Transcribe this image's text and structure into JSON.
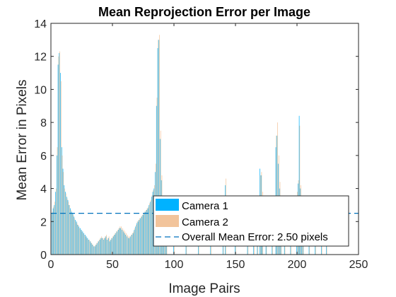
{
  "chart_data": {
    "type": "bar",
    "title": "Mean Reprojection Error per Image",
    "xlabel": "Image Pairs",
    "ylabel": "Mean Error in Pixels",
    "xlim": [
      0,
      250
    ],
    "ylim": [
      0,
      14
    ],
    "xticks": [
      0,
      50,
      100,
      150,
      200,
      250
    ],
    "yticks": [
      0,
      2,
      4,
      6,
      8,
      10,
      12,
      14
    ],
    "grid": false,
    "legend_position": "bottom-right",
    "colors": {
      "camera1": "#00b2ff",
      "camera2": "#f2c49b",
      "mean_line": "#0072bd"
    },
    "legend": {
      "entries": [
        "Camera 1",
        "Camera 2",
        "Overall Mean Error: 2.50 pixels"
      ]
    },
    "overall_mean": 2.5,
    "series": [
      {
        "name": "Camera 1",
        "points": [
          [
            1,
            2.5
          ],
          [
            2,
            2.8
          ],
          [
            3,
            3.0
          ],
          [
            4,
            3.8
          ],
          [
            5,
            6.0
          ],
          [
            6,
            11.5
          ],
          [
            7,
            12.2
          ],
          [
            8,
            11.0
          ],
          [
            9,
            6.5
          ],
          [
            10,
            5.2
          ],
          [
            11,
            4.2
          ],
          [
            12,
            3.8
          ],
          [
            13,
            3.5
          ],
          [
            14,
            3.3
          ],
          [
            15,
            3.0
          ],
          [
            16,
            2.8
          ],
          [
            17,
            2.6
          ],
          [
            18,
            2.5
          ],
          [
            19,
            2.3
          ],
          [
            20,
            2.1
          ],
          [
            21,
            2.0
          ],
          [
            22,
            1.8
          ],
          [
            23,
            1.7
          ],
          [
            24,
            1.6
          ],
          [
            25,
            1.5
          ],
          [
            26,
            1.4
          ],
          [
            27,
            1.3
          ],
          [
            28,
            1.2
          ],
          [
            29,
            1.1
          ],
          [
            30,
            1.0
          ],
          [
            31,
            0.9
          ],
          [
            32,
            0.8
          ],
          [
            33,
            0.7
          ],
          [
            34,
            0.6
          ],
          [
            35,
            0.5
          ],
          [
            36,
            0.5
          ],
          [
            37,
            0.6
          ],
          [
            38,
            0.7
          ],
          [
            39,
            0.8
          ],
          [
            40,
            0.9
          ],
          [
            41,
            1.0
          ],
          [
            42,
            1.0
          ],
          [
            43,
            0.9
          ],
          [
            44,
            1.0
          ],
          [
            45,
            1.1
          ],
          [
            46,
            0.9
          ],
          [
            47,
            1.0
          ],
          [
            48,
            0.8
          ],
          [
            49,
            0.9
          ],
          [
            50,
            1.0
          ],
          [
            51,
            1.1
          ],
          [
            52,
            1.2
          ],
          [
            53,
            1.3
          ],
          [
            54,
            1.4
          ],
          [
            55,
            1.5
          ],
          [
            56,
            1.6
          ],
          [
            57,
            1.6
          ],
          [
            58,
            1.5
          ],
          [
            59,
            1.4
          ],
          [
            60,
            1.3
          ],
          [
            61,
            1.2
          ],
          [
            62,
            1.1
          ],
          [
            63,
            1.0
          ],
          [
            64,
            1.0
          ],
          [
            65,
            1.1
          ],
          [
            66,
            1.2
          ],
          [
            67,
            1.3
          ],
          [
            68,
            1.5
          ],
          [
            69,
            1.7
          ],
          [
            70,
            1.9
          ],
          [
            71,
            2.0
          ],
          [
            72,
            2.1
          ],
          [
            73,
            2.2
          ],
          [
            74,
            2.3
          ],
          [
            75,
            2.4
          ],
          [
            76,
            2.5
          ],
          [
            77,
            2.6
          ],
          [
            78,
            2.7
          ],
          [
            79,
            2.8
          ],
          [
            80,
            3.0
          ],
          [
            81,
            3.2
          ],
          [
            82,
            3.5
          ],
          [
            83,
            3.8
          ],
          [
            84,
            4.0
          ],
          [
            85,
            5.0
          ],
          [
            86,
            9.0
          ],
          [
            87,
            12.5
          ],
          [
            88,
            13.0
          ],
          [
            89,
            7.0
          ],
          [
            90,
            4.5
          ],
          [
            91,
            3.0
          ],
          [
            92,
            2.5
          ],
          [
            93,
            2.2
          ],
          [
            94,
            2.0
          ],
          [
            100,
            1.5
          ],
          [
            110,
            1.4
          ],
          [
            120,
            1.6
          ],
          [
            130,
            1.7
          ],
          [
            140,
            1.9
          ],
          [
            142,
            4.2
          ],
          [
            150,
            2.0
          ],
          [
            160,
            2.8
          ],
          [
            165,
            2.8
          ],
          [
            168,
            3.0
          ],
          [
            170,
            5.2
          ],
          [
            171,
            4.8
          ],
          [
            172,
            3.5
          ],
          [
            175,
            2.5
          ],
          [
            180,
            3.0
          ],
          [
            183,
            6.5
          ],
          [
            184,
            7.2
          ],
          [
            185,
            5.5
          ],
          [
            186,
            4.0
          ],
          [
            187,
            3.0
          ],
          [
            190,
            2.8
          ],
          [
            195,
            3.0
          ],
          [
            200,
            3.5
          ],
          [
            201,
            4.3
          ],
          [
            202,
            8.4
          ],
          [
            203,
            4.0
          ],
          [
            204,
            3.2
          ],
          [
            205,
            2.8
          ],
          [
            210,
            2.0
          ],
          [
            215,
            1.5
          ],
          [
            220,
            1.0
          ],
          [
            224,
            0.8
          ]
        ]
      },
      {
        "name": "Camera 2",
        "points": [
          [
            1,
            2.6
          ],
          [
            2,
            2.9
          ],
          [
            3,
            3.2
          ],
          [
            4,
            4.0
          ],
          [
            5,
            6.5
          ],
          [
            6,
            12.0
          ],
          [
            7,
            12.3
          ],
          [
            8,
            10.5
          ],
          [
            9,
            6.0
          ],
          [
            10,
            5.0
          ],
          [
            11,
            4.0
          ],
          [
            12,
            3.7
          ],
          [
            13,
            3.4
          ],
          [
            14,
            3.2
          ],
          [
            15,
            3.0
          ],
          [
            16,
            2.7
          ],
          [
            17,
            2.5
          ],
          [
            18,
            2.4
          ],
          [
            19,
            2.2
          ],
          [
            20,
            2.0
          ],
          [
            21,
            1.9
          ],
          [
            22,
            1.8
          ],
          [
            23,
            1.6
          ],
          [
            24,
            1.5
          ],
          [
            25,
            1.4
          ],
          [
            26,
            1.3
          ],
          [
            27,
            1.2
          ],
          [
            28,
            1.1
          ],
          [
            29,
            1.0
          ],
          [
            30,
            0.9
          ],
          [
            31,
            0.9
          ],
          [
            32,
            0.8
          ],
          [
            33,
            0.7
          ],
          [
            34,
            0.6
          ],
          [
            35,
            0.5
          ],
          [
            36,
            0.6
          ],
          [
            37,
            0.7
          ],
          [
            38,
            0.8
          ],
          [
            39,
            0.9
          ],
          [
            40,
            1.0
          ],
          [
            41,
            1.1
          ],
          [
            42,
            1.0
          ],
          [
            43,
            1.0
          ],
          [
            44,
            1.1
          ],
          [
            45,
            1.2
          ],
          [
            46,
            1.0
          ],
          [
            47,
            1.1
          ],
          [
            48,
            0.9
          ],
          [
            49,
            1.0
          ],
          [
            50,
            1.1
          ],
          [
            51,
            1.2
          ],
          [
            52,
            1.3
          ],
          [
            53,
            1.4
          ],
          [
            54,
            1.5
          ],
          [
            55,
            1.6
          ],
          [
            56,
            1.7
          ],
          [
            57,
            1.7
          ],
          [
            58,
            1.6
          ],
          [
            59,
            1.5
          ],
          [
            60,
            1.4
          ],
          [
            61,
            1.3
          ],
          [
            62,
            1.2
          ],
          [
            63,
            1.1
          ],
          [
            64,
            1.1
          ],
          [
            65,
            1.2
          ],
          [
            66,
            1.3
          ],
          [
            67,
            1.4
          ],
          [
            68,
            1.6
          ],
          [
            69,
            1.8
          ],
          [
            70,
            2.0
          ],
          [
            71,
            2.1
          ],
          [
            72,
            2.2
          ],
          [
            73,
            2.3
          ],
          [
            74,
            2.4
          ],
          [
            75,
            2.5
          ],
          [
            76,
            2.6
          ],
          [
            77,
            2.7
          ],
          [
            78,
            2.8
          ],
          [
            79,
            2.9
          ],
          [
            80,
            3.1
          ],
          [
            81,
            3.3
          ],
          [
            82,
            3.6
          ],
          [
            83,
            3.9
          ],
          [
            84,
            4.2
          ],
          [
            85,
            5.5
          ],
          [
            86,
            9.5
          ],
          [
            87,
            13.0
          ],
          [
            88,
            13.3
          ],
          [
            89,
            7.5
          ],
          [
            90,
            4.8
          ],
          [
            91,
            3.2
          ],
          [
            92,
            2.6
          ],
          [
            93,
            2.3
          ],
          [
            94,
            2.1
          ],
          [
            100,
            1.6
          ],
          [
            110,
            1.5
          ],
          [
            120,
            1.7
          ],
          [
            130,
            1.8
          ],
          [
            140,
            2.0
          ],
          [
            142,
            4.6
          ],
          [
            150,
            2.1
          ],
          [
            160,
            3.0
          ],
          [
            165,
            3.0
          ],
          [
            168,
            3.2
          ],
          [
            170,
            4.8
          ],
          [
            171,
            5.0
          ],
          [
            172,
            3.8
          ],
          [
            175,
            2.7
          ],
          [
            180,
            3.2
          ],
          [
            183,
            7.2
          ],
          [
            184,
            8.0
          ],
          [
            185,
            6.0
          ],
          [
            186,
            4.4
          ],
          [
            187,
            3.2
          ],
          [
            190,
            3.0
          ],
          [
            195,
            3.2
          ],
          [
            200,
            3.8
          ],
          [
            201,
            4.5
          ],
          [
            202,
            7.8
          ],
          [
            203,
            4.2
          ],
          [
            204,
            3.4
          ],
          [
            205,
            3.0
          ],
          [
            210,
            2.2
          ],
          [
            215,
            1.6
          ],
          [
            220,
            1.1
          ],
          [
            224,
            0.9
          ]
        ]
      }
    ]
  }
}
